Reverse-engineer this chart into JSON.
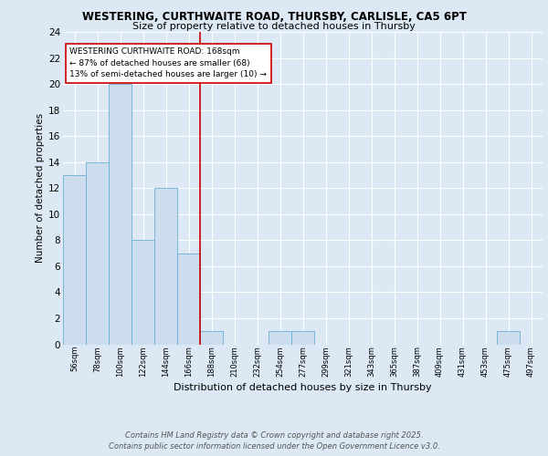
{
  "title1": "WESTERING, CURTHWAITE ROAD, THURSBY, CARLISLE, CA5 6PT",
  "title2": "Size of property relative to detached houses in Thursby",
  "xlabel": "Distribution of detached houses by size in Thursby",
  "ylabel": "Number of detached properties",
  "categories": [
    "56sqm",
    "78sqm",
    "100sqm",
    "122sqm",
    "144sqm",
    "166sqm",
    "188sqm",
    "210sqm",
    "232sqm",
    "254sqm",
    "277sqm",
    "299sqm",
    "321sqm",
    "343sqm",
    "365sqm",
    "387sqm",
    "409sqm",
    "431sqm",
    "453sqm",
    "475sqm",
    "497sqm"
  ],
  "values": [
    13,
    14,
    20,
    8,
    12,
    7,
    1,
    0,
    0,
    1,
    1,
    0,
    0,
    0,
    0,
    0,
    0,
    0,
    0,
    1,
    0
  ],
  "bar_color": "#ccdded",
  "bar_edge_color": "#6aaed6",
  "bar_width": 1.0,
  "ylim": [
    0,
    24
  ],
  "yticks": [
    0,
    2,
    4,
    6,
    8,
    10,
    12,
    14,
    16,
    18,
    20,
    22,
    24
  ],
  "vline_index": 6,
  "annotation_text": "WESTERING CURTHWAITE ROAD: 168sqm\n← 87% of detached houses are smaller (68)\n13% of semi-detached houses are larger (10) →",
  "annotation_box_color": "#ffffff",
  "annotation_box_edge": "#cc0000",
  "vline_color": "#cc0000",
  "footer_text": "Contains HM Land Registry data © Crown copyright and database right 2025.\nContains public sector information licensed under the Open Government Licence v3.0.",
  "background_color": "#dce9f5",
  "plot_bg_color": "#dce9f5",
  "grid_color": "#ffffff"
}
